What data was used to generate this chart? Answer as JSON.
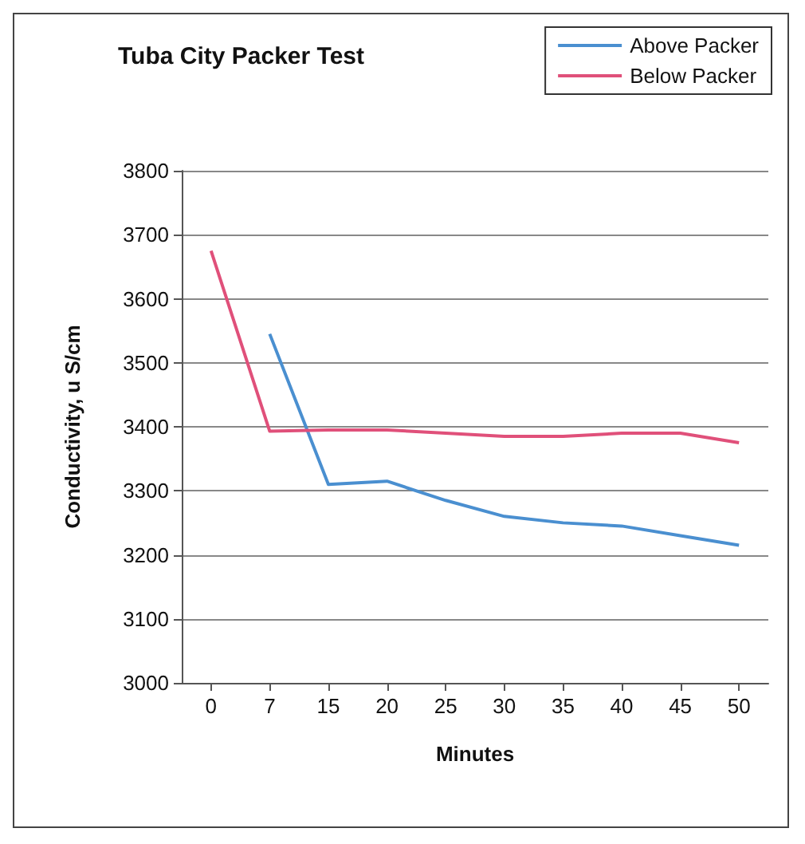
{
  "chart_data": {
    "type": "line",
    "title": "Tuba City Packer Test",
    "xlabel": "Minutes",
    "ylabel": "Conductivity, u S/cm",
    "categories": [
      "0",
      "7",
      "15",
      "20",
      "25",
      "30",
      "35",
      "40",
      "45",
      "50"
    ],
    "series": [
      {
        "name": "Above Packer",
        "color": "#4a8fd0",
        "values": [
          null,
          3545,
          3310,
          3315,
          3285,
          3260,
          3250,
          3245,
          3230,
          3215
        ]
      },
      {
        "name": "Below Packer",
        "color": "#e0507a",
        "values": [
          3675,
          3393,
          3395,
          3395,
          3390,
          3385,
          3385,
          3390,
          3390,
          3375
        ]
      }
    ],
    "ylim": [
      3000,
      3800
    ],
    "yticks": [
      3000,
      3100,
      3200,
      3300,
      3400,
      3500,
      3600,
      3700,
      3800
    ],
    "grid": "y",
    "legend": "top right",
    "marker": "none",
    "line_style": "solid"
  }
}
